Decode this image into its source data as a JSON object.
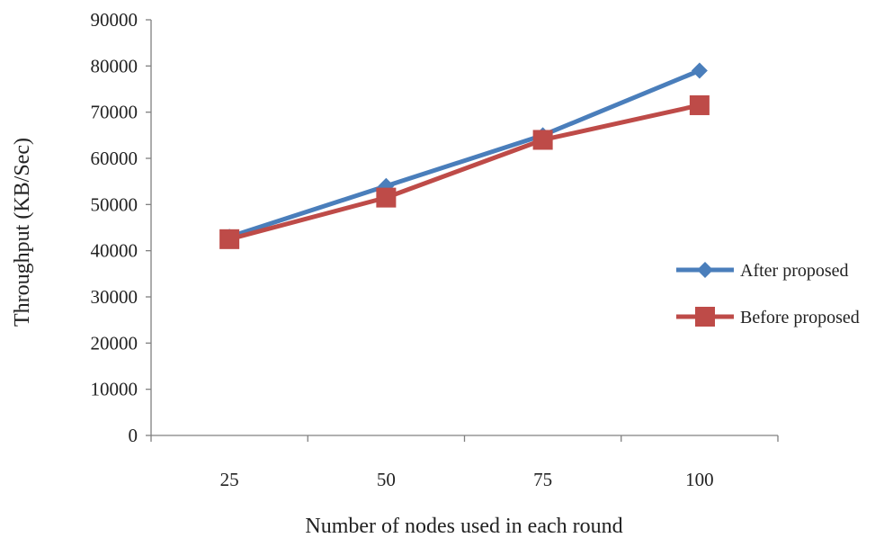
{
  "chart_data": {
    "type": "line",
    "categories": [
      "25",
      "50",
      "75",
      "100"
    ],
    "series": [
      {
        "name": "After proposed",
        "values": [
          43000,
          54000,
          65000,
          79000
        ],
        "color": "#4a7ebb",
        "marker": "diamond"
      },
      {
        "name": "Before proposed",
        "values": [
          42500,
          51500,
          64000,
          71500
        ],
        "color": "#be4b48",
        "marker": "square"
      }
    ],
    "title": "",
    "xlabel": "Number of nodes used in each round",
    "ylabel": "Throughput (KB/Sec)",
    "ylim": [
      0,
      90000
    ],
    "yticks": [
      0,
      10000,
      20000,
      30000,
      40000,
      50000,
      60000,
      70000,
      80000,
      90000
    ],
    "grid": false,
    "legend_position": "right"
  }
}
